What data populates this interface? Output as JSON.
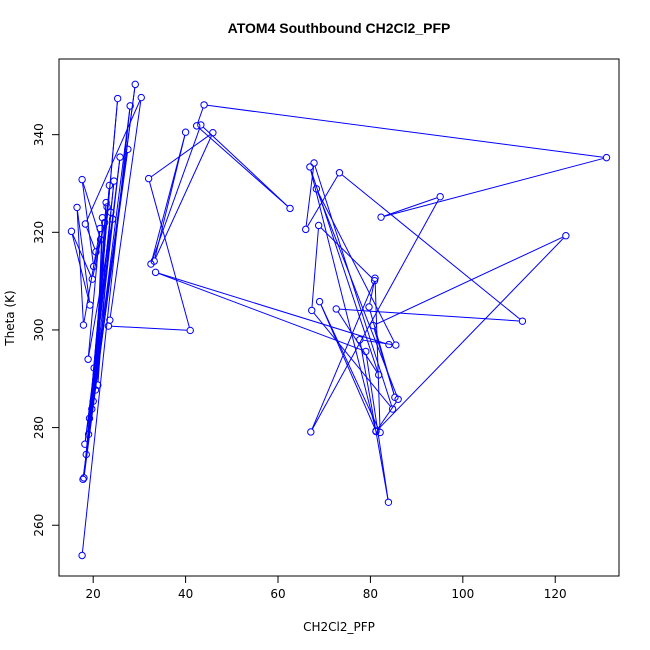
{
  "chart_data": {
    "type": "line",
    "title": "ATOM4 Southbound CH2Cl2_PFP",
    "xlabel": "CH2Cl2_PFP",
    "ylabel": "Theta (K)",
    "xlim": [
      12.6,
      133.8
    ],
    "ylim": [
      249.6,
      355.5
    ],
    "xticks": [
      20,
      40,
      60,
      80,
      100,
      120
    ],
    "yticks": [
      260,
      280,
      300,
      320,
      340
    ],
    "grid": false,
    "series": [
      {
        "color": "#0000ff",
        "marker": "open-circle",
        "x": [
          17.6,
          28.0,
          17.8,
          29.1,
          18.0,
          25.3,
          18.5,
          27.5,
          18.2,
          25.8,
          19.0,
          24.5,
          19.2,
          23.5,
          19.7,
          22.8,
          20.0,
          23.0,
          20.5,
          22.0,
          21.0,
          23.8,
          20.2,
          24.2,
          18.9,
          21.5,
          17.9,
          16.5,
          19.3,
          15.3,
          19.8,
          22.5,
          20.1,
          17.6,
          21.6,
          20.6,
          18.3,
          30.4,
          23.6,
          23.3,
          41.0,
          32.0,
          45.9,
          33.2,
          40.0,
          32.5,
          43.3,
          62.6,
          42.4,
          44.0,
          131.1,
          82.3,
          95.1,
          67.1,
          80.9,
          68.8,
          67.3,
          84.8,
          67.8,
          66.0,
          73.3,
          112.9,
          72.6,
          81.8,
          66.9,
          81.2,
          69.0,
          82.1,
          81.0,
          79.7,
          85.3,
          80.6,
          122.3,
          81.2,
          86.0,
          68.3,
          85.5,
          77.7,
          83.9,
          79.0,
          33.5,
          84.0
        ],
        "y": [
          253.8,
          345.9,
          269.4,
          350.3,
          269.7,
          347.4,
          274.5,
          337.0,
          276.6,
          335.4,
          278.6,
          330.5,
          281.9,
          329.6,
          283.8,
          326.1,
          285.4,
          325.2,
          287.7,
          323.0,
          288.7,
          324.1,
          292.2,
          322.7,
          294.0,
          320.8,
          301.0,
          325.1,
          305.1,
          320.2,
          310.4,
          322.0,
          313.0,
          330.8,
          318.5,
          316.0,
          321.7,
          347.6,
          302.0,
          300.8,
          299.9,
          331.0,
          340.4,
          314.1,
          340.5,
          313.5,
          342.0,
          324.9,
          341.8,
          346.1,
          335.3,
          323.1,
          327.3,
          279.1,
          310.1,
          321.4,
          304.0,
          283.8,
          334.2,
          320.6,
          332.2,
          301.8,
          304.3,
          290.8,
          333.4,
          279.3,
          305.8,
          279.0,
          310.6,
          304.7,
          286.2,
          300.9,
          319.3,
          279.2,
          285.8,
          328.9,
          296.9,
          298.0,
          264.7,
          295.6,
          311.8,
          297.0
        ]
      }
    ]
  }
}
